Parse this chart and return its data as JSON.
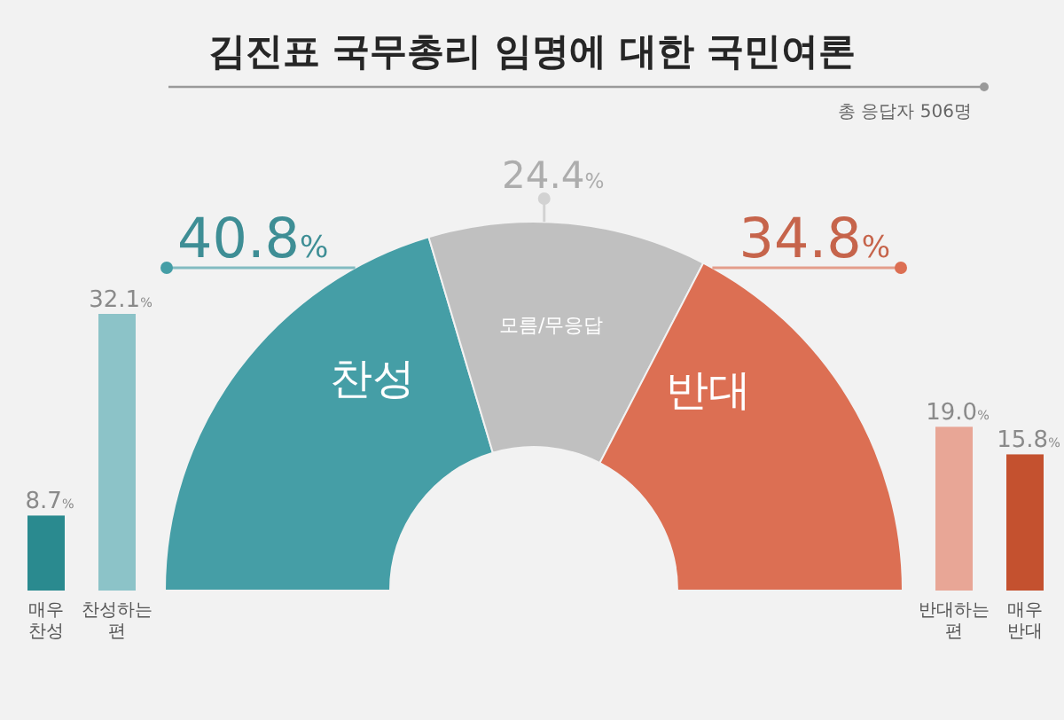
{
  "chart_data": [
    {
      "type": "donut",
      "title": "김진표 국무총리 임명에 대한 국민여론",
      "annotations": [
        "총 응답자 506명"
      ],
      "categories": [
        "찬성",
        "모름/무응답",
        "반대"
      ],
      "values": [
        40.8,
        24.4,
        34.8
      ],
      "colors": [
        "#459ea6",
        "#c0c0c0",
        "#dc6f53"
      ],
      "value_labels": [
        "40.8%",
        "24.4%",
        "34.8%"
      ]
    },
    {
      "type": "bar",
      "categories": [
        "매우 찬성",
        "찬성하는 편"
      ],
      "values": [
        8.7,
        32.1
      ],
      "colors": [
        "#2a8a8f",
        "#8cc3c8"
      ],
      "value_labels": [
        "8.7%",
        "32.1%"
      ]
    },
    {
      "type": "bar",
      "categories": [
        "반대하는 편",
        "매우 반대"
      ],
      "values": [
        19.0,
        15.8
      ],
      "colors": [
        "#e8a696",
        "#c4512f"
      ],
      "value_labels": [
        "19.0%",
        "15.8%"
      ]
    }
  ]
}
